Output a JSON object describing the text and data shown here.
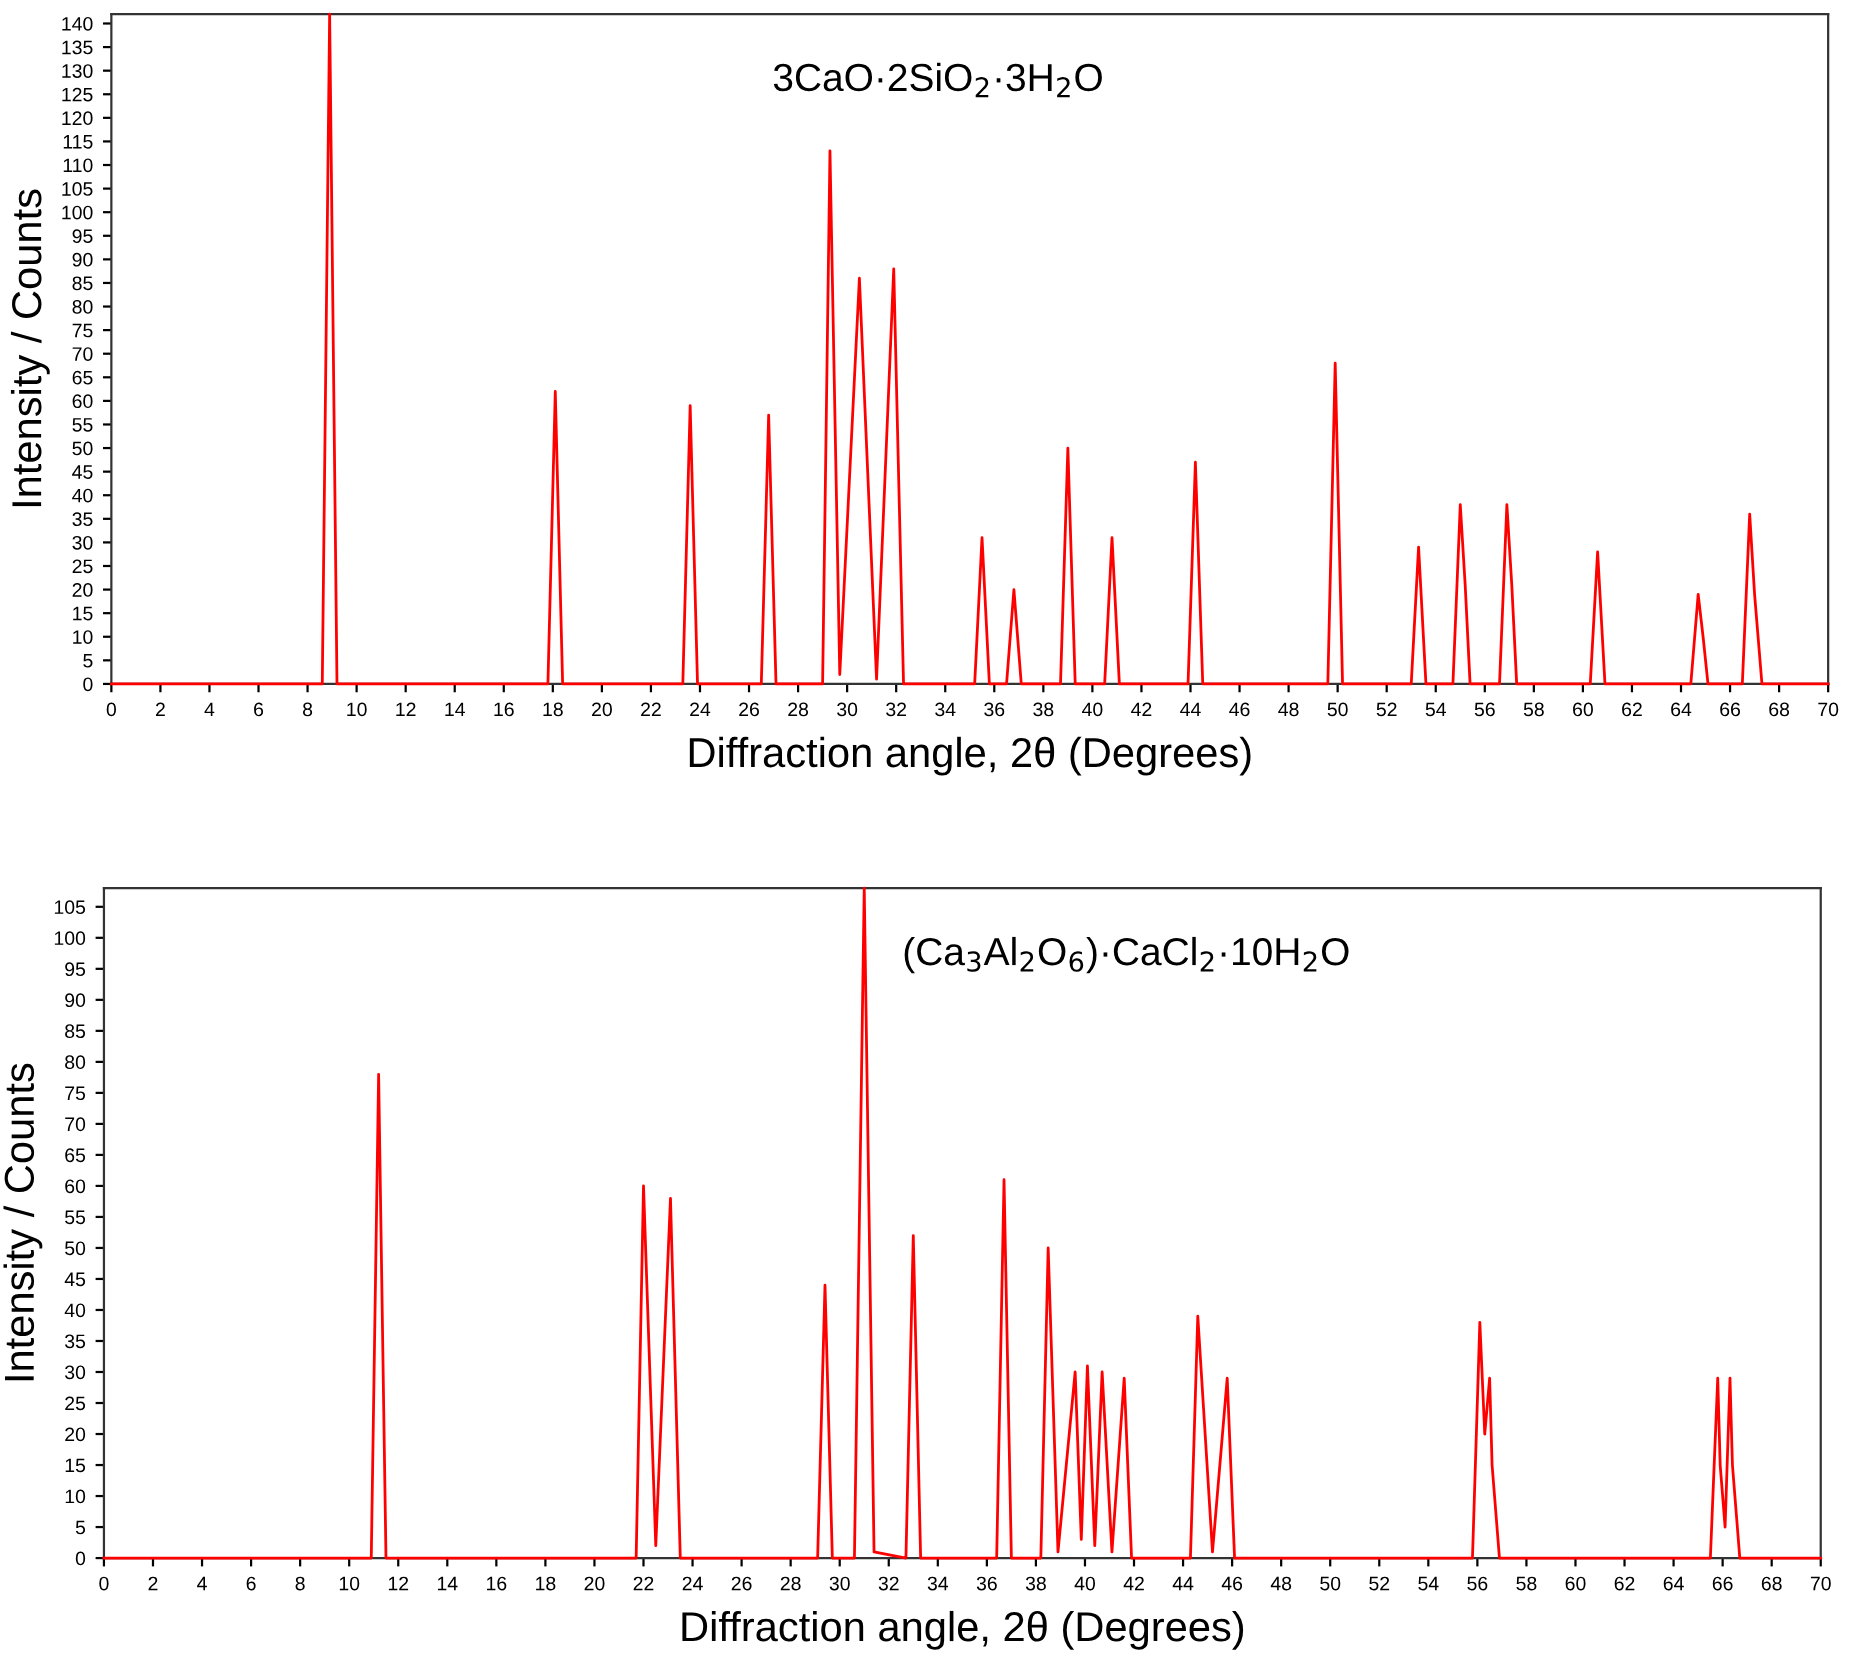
{
  "chart_data": [
    {
      "type": "line",
      "xlabel": "Diffraction angle, 2θ (Degrees)",
      "ylabel": "Intensity / Counts",
      "annotations": [
        "3CaO·2SiO$_{2}$·3H$_{2}$O"
      ],
      "xlim": [
        0,
        70
      ],
      "ylim": [
        0,
        142
      ],
      "xticks": [
        0,
        2,
        4,
        6,
        8,
        10,
        12,
        14,
        16,
        18,
        20,
        22,
        24,
        26,
        28,
        30,
        32,
        34,
        36,
        38,
        40,
        42,
        44,
        46,
        48,
        50,
        52,
        54,
        56,
        58,
        60,
        62,
        64,
        66,
        68,
        70
      ],
      "yticks": [
        0,
        5,
        10,
        15,
        20,
        25,
        30,
        35,
        40,
        45,
        50,
        55,
        60,
        65,
        70,
        75,
        80,
        85,
        90,
        95,
        100,
        105,
        110,
        115,
        120,
        125,
        130,
        135,
        140
      ],
      "grid": false,
      "legend": false,
      "series": [
        {
          "color": "#ff0000",
          "x": [
            0,
            8.6,
            8.9,
            9.2,
            17.8,
            18.1,
            18.4,
            23.3,
            23.6,
            23.9,
            26.5,
            26.8,
            27.1,
            29.0,
            29.3,
            29.7,
            30.5,
            31.2,
            31.9,
            32.3,
            35.2,
            35.5,
            35.8,
            36.5,
            36.8,
            37.1,
            38.7,
            39.0,
            39.3,
            40.5,
            40.8,
            41.1,
            43.9,
            44.2,
            44.5,
            49.6,
            49.9,
            50.2,
            53.0,
            53.3,
            53.6,
            54.7,
            55.0,
            55.2,
            55.4,
            56.6,
            56.9,
            57.1,
            57.3,
            60.3,
            60.6,
            60.9,
            64.4,
            64.7,
            64.9,
            65.1,
            66.5,
            66.8,
            67.0,
            67.3,
            70
          ],
          "values": [
            0,
            0,
            142,
            0,
            0,
            62,
            0,
            0,
            59,
            0,
            0,
            57,
            0,
            0,
            113,
            2,
            86,
            1,
            88,
            0,
            0,
            31,
            0,
            0,
            20,
            0,
            0,
            50,
            0,
            0,
            31,
            0,
            0,
            47,
            0,
            0,
            68,
            0,
            0,
            29,
            0,
            0,
            38,
            21,
            0,
            0,
            38,
            21,
            0,
            0,
            28,
            0,
            0,
            19,
            10,
            0,
            0,
            36,
            19,
            0,
            0
          ]
        }
      ]
    },
    {
      "type": "line",
      "xlabel": "Diffraction angle, 2θ (Degrees)",
      "ylabel": "Intensity / Counts",
      "annotations": [
        "(Ca$_{3}$Al$_{2}$O$_{6}$)·CaCl$_{2}$·10H$_{2}$O"
      ],
      "xlim": [
        0,
        70
      ],
      "ylim": [
        0,
        108
      ],
      "xticks": [
        0,
        2,
        4,
        6,
        8,
        10,
        12,
        14,
        16,
        18,
        20,
        22,
        24,
        26,
        28,
        30,
        32,
        34,
        36,
        38,
        40,
        42,
        44,
        46,
        48,
        50,
        52,
        54,
        56,
        58,
        60,
        62,
        64,
        66,
        68,
        70
      ],
      "yticks": [
        0,
        5,
        10,
        15,
        20,
        25,
        30,
        35,
        40,
        45,
        50,
        55,
        60,
        65,
        70,
        75,
        80,
        85,
        90,
        95,
        100,
        105
      ],
      "grid": false,
      "legend": false,
      "series": [
        {
          "color": "#ff0000",
          "x": [
            0,
            10.9,
            11.2,
            11.5,
            21.7,
            22.0,
            22.5,
            23.1,
            23.5,
            29.1,
            29.4,
            29.7,
            30.6,
            31.0,
            31.4,
            32.7,
            33.0,
            33.3,
            36.4,
            36.7,
            37.0,
            38.2,
            38.5,
            38.9,
            39.6,
            39.85,
            40.1,
            40.4,
            40.7,
            41.1,
            41.6,
            41.9,
            44.3,
            44.6,
            45.2,
            45.8,
            46.1,
            55.8,
            56.1,
            56.3,
            56.5,
            56.6,
            56.9,
            65.5,
            65.8,
            65.9,
            66.1,
            66.3,
            66.4,
            66.7,
            70
          ],
          "values": [
            0,
            0,
            78,
            0,
            0,
            60,
            2,
            58,
            0,
            0,
            44,
            0,
            0,
            108,
            1,
            0,
            52,
            0,
            0,
            61,
            0,
            0,
            50,
            1,
            30,
            3,
            31,
            2,
            30,
            1,
            29,
            0,
            0,
            39,
            1,
            29,
            0,
            0,
            38,
            20,
            29,
            15,
            0,
            0,
            29,
            15,
            5,
            29,
            15,
            0,
            0
          ]
        }
      ]
    }
  ]
}
